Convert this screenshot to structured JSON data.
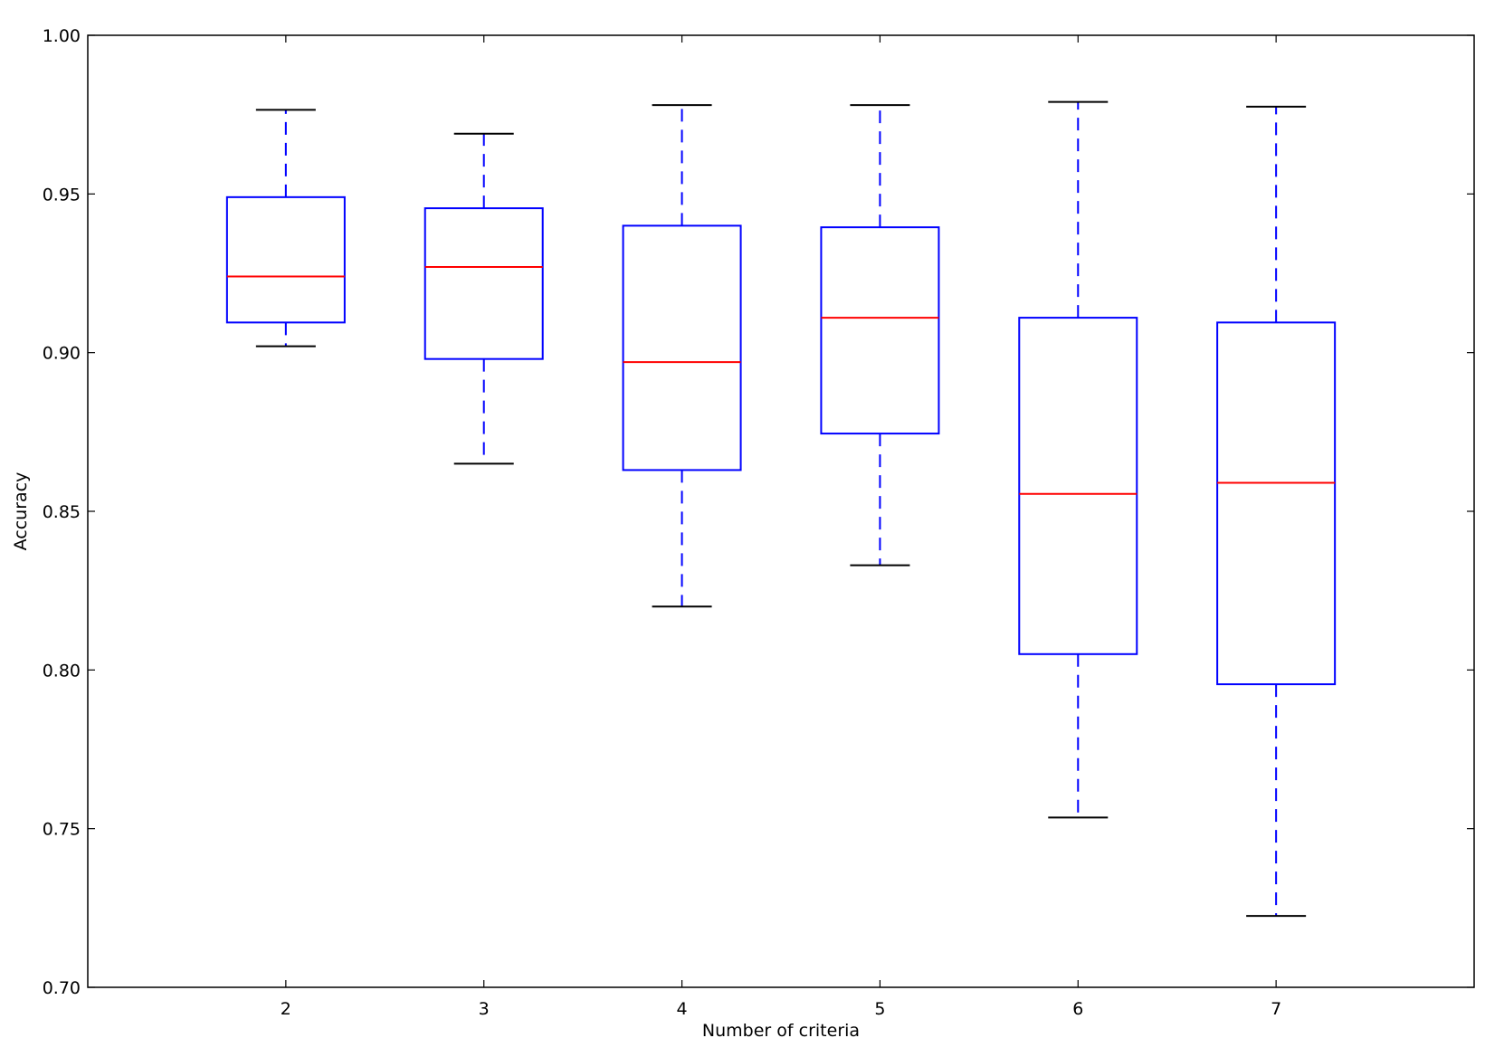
{
  "chart_data": {
    "type": "box",
    "title": "",
    "xlabel": "Number of criteria",
    "ylabel": "Accuracy",
    "ylim": [
      0.7,
      1.0
    ],
    "yticks": [
      "0.70",
      "0.75",
      "0.80",
      "0.85",
      "0.90",
      "0.95",
      "1.00"
    ],
    "ytick_values": [
      0.7,
      0.75,
      0.8,
      0.85,
      0.9,
      0.95,
      1.0
    ],
    "categories": [
      "2",
      "3",
      "4",
      "5",
      "6",
      "7"
    ],
    "boxes": [
      {
        "category": "2",
        "whisker_low": 0.902,
        "q1": 0.9095,
        "median": 0.924,
        "q3": 0.949,
        "whisker_high": 0.9765
      },
      {
        "category": "3",
        "whisker_low": 0.865,
        "q1": 0.898,
        "median": 0.927,
        "q3": 0.9455,
        "whisker_high": 0.969
      },
      {
        "category": "4",
        "whisker_low": 0.82,
        "q1": 0.863,
        "median": 0.897,
        "q3": 0.94,
        "whisker_high": 0.978
      },
      {
        "category": "5",
        "whisker_low": 0.833,
        "q1": 0.8745,
        "median": 0.911,
        "q3": 0.9395,
        "whisker_high": 0.978
      },
      {
        "category": "6",
        "whisker_low": 0.7535,
        "q1": 0.805,
        "median": 0.8555,
        "q3": 0.911,
        "whisker_high": 0.979
      },
      {
        "category": "7",
        "whisker_low": 0.7225,
        "q1": 0.7955,
        "median": 0.859,
        "q3": 0.9095,
        "whisker_high": 0.9775
      }
    ],
    "colors": {
      "box": "#0000ff",
      "median": "#ff0000",
      "cap": "#000000",
      "axes": "#000000"
    },
    "grid": false,
    "legend": "none"
  }
}
